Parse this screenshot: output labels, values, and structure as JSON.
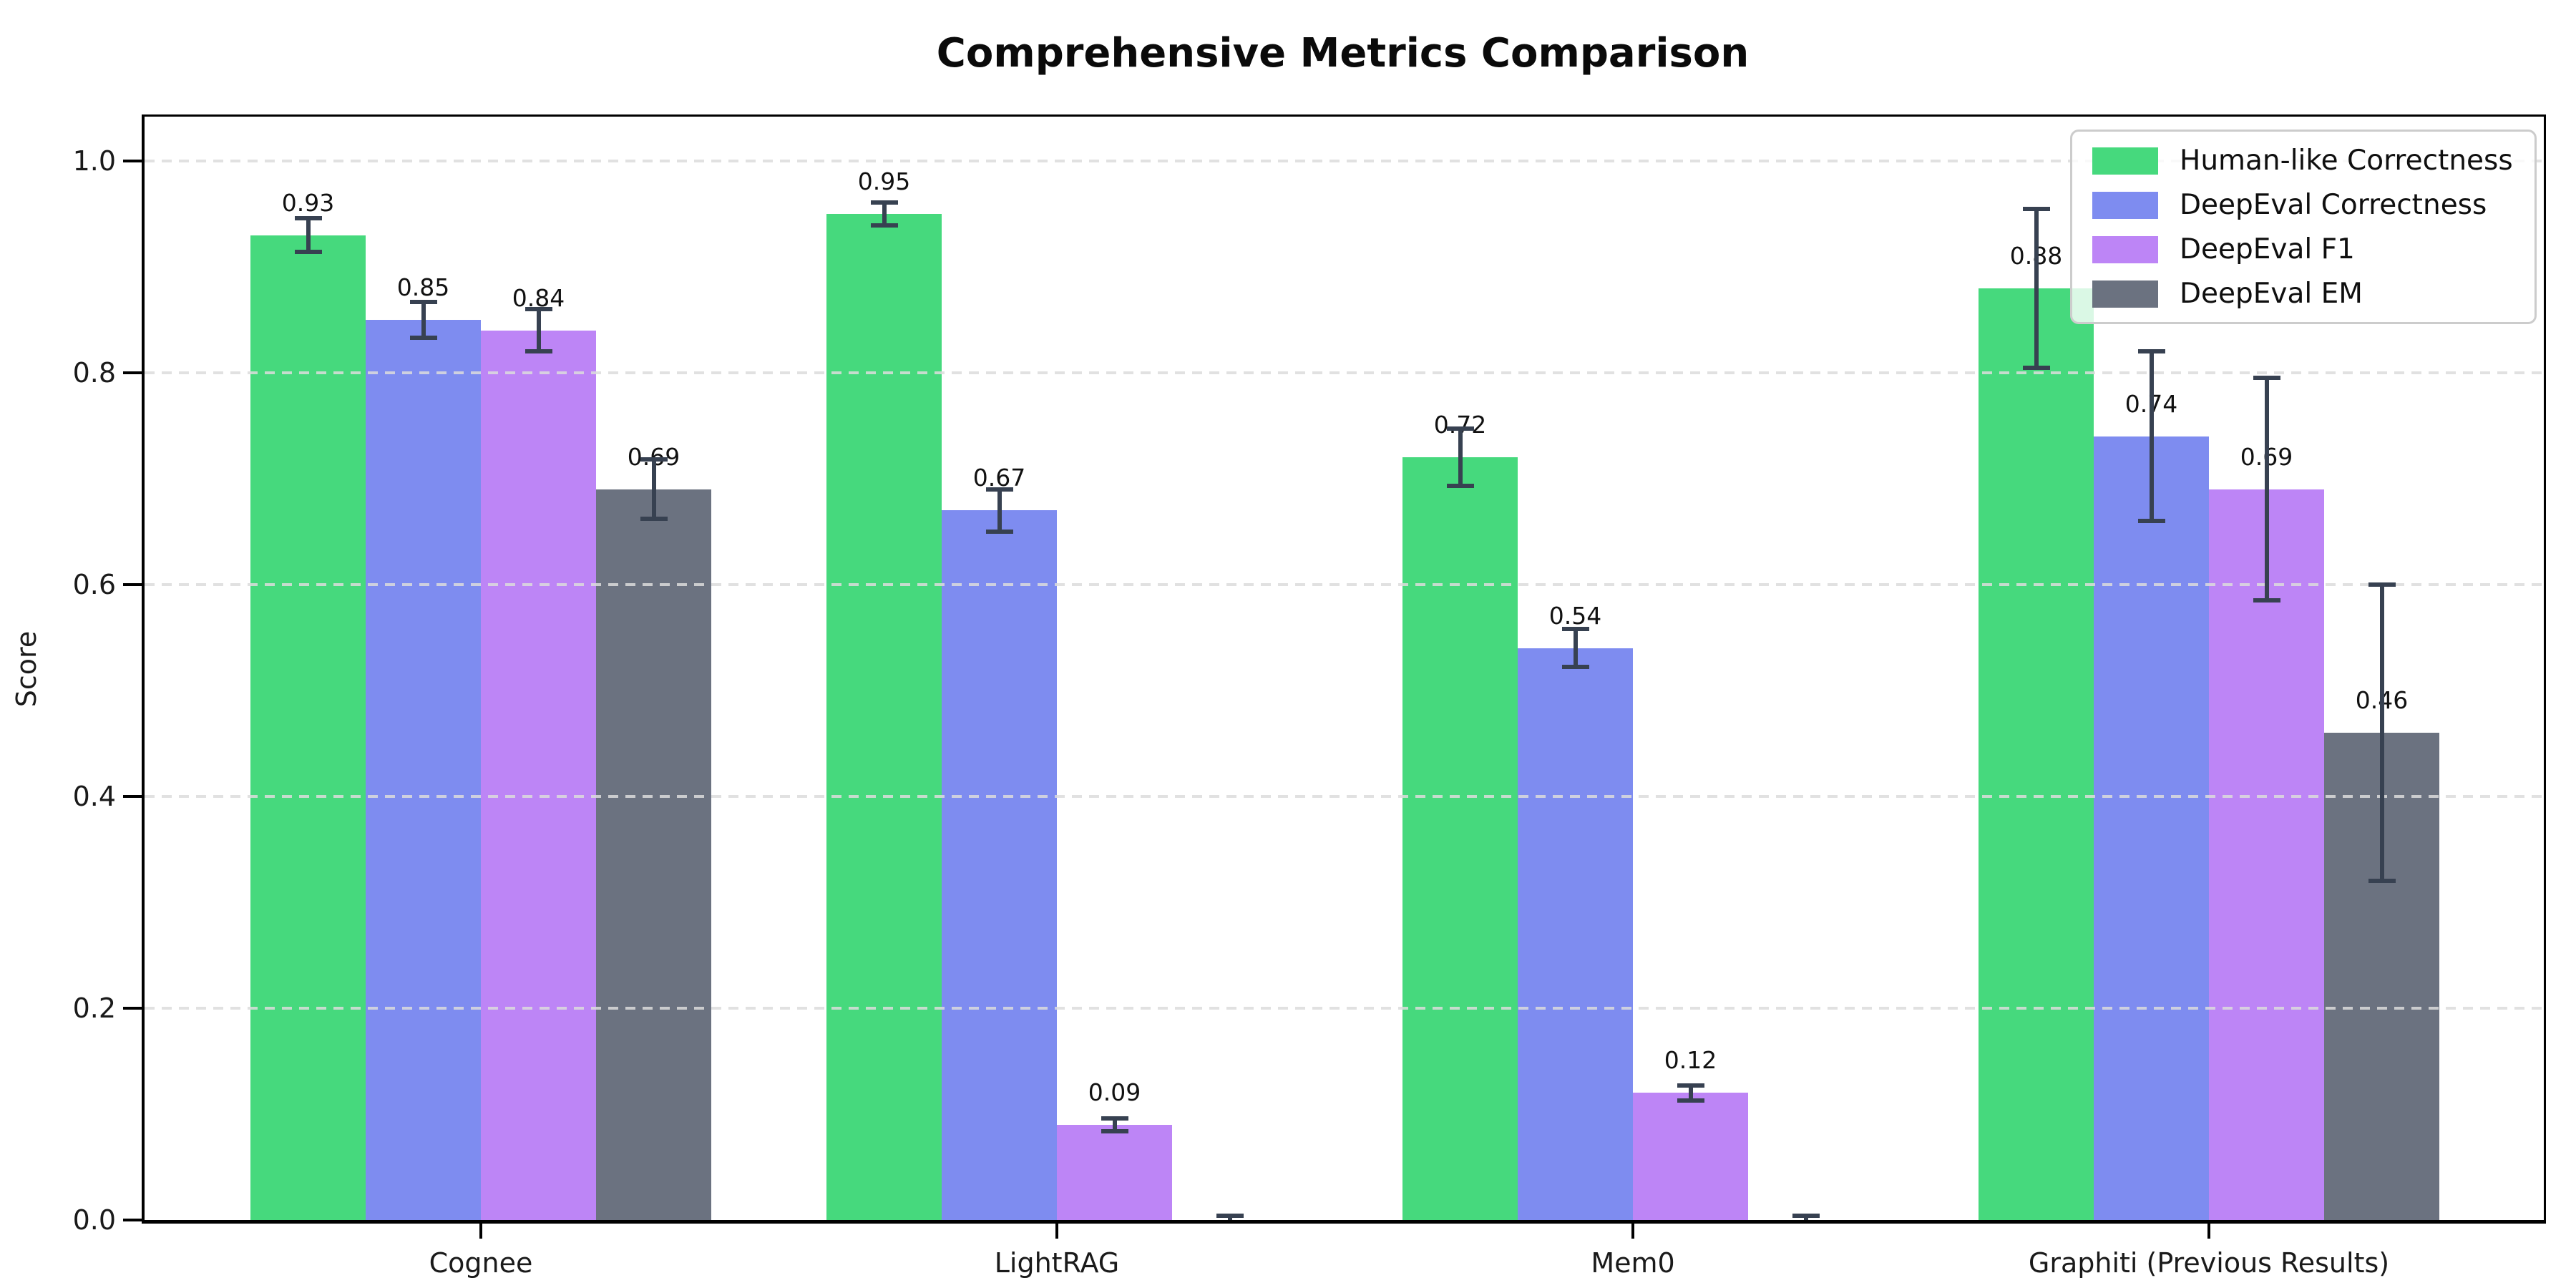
{
  "title": "Comprehensive Metrics Comparison",
  "ylabel": "Score",
  "chart_data": {
    "type": "bar",
    "categories": [
      "Cognee",
      "LightRAG",
      "Mem0",
      "Graphiti (Previous Results)"
    ],
    "series": [
      {
        "name": "Human-like Correctness",
        "color": "#46d97d",
        "values": [
          0.93,
          0.95,
          0.72,
          0.88
        ],
        "errors": [
          0.016,
          0.011,
          0.027,
          0.075
        ],
        "labels": [
          "0.93",
          "0.95",
          "0.72",
          "0.88"
        ]
      },
      {
        "name": "DeepEval Correctness",
        "color": "#7e8cf0",
        "values": [
          0.85,
          0.67,
          0.54,
          0.74
        ],
        "errors": [
          0.017,
          0.02,
          0.018,
          0.08
        ],
        "labels": [
          "0.85",
          "0.67",
          "0.54",
          "0.74"
        ]
      },
      {
        "name": "DeepEval F1",
        "color": "#bd85f6",
        "values": [
          0.84,
          0.09,
          0.12,
          0.69
        ],
        "errors": [
          0.02,
          0.006,
          0.007,
          0.105
        ],
        "labels": [
          "0.84",
          "0.09",
          "0.12",
          "0.69"
        ]
      },
      {
        "name": "DeepEval EM",
        "color": "#6b7280",
        "values": [
          0.69,
          0.0,
          0.0,
          0.46
        ],
        "errors": [
          0.028,
          0.004,
          0.004,
          0.14
        ],
        "labels": [
          "0.69",
          null,
          null,
          "0.46"
        ]
      }
    ],
    "title": "Comprehensive Metrics Comparison",
    "xlabel": "",
    "ylabel": "Score",
    "ylim": [
      0,
      1.05
    ],
    "yticks": [
      "0.0",
      "0.2",
      "0.4",
      "0.6",
      "0.8",
      "1.0"
    ],
    "grid": "dashed horizontal",
    "legend_position": "upper right",
    "error_bar_color": "#374151",
    "grid_color": "#dcdcdc"
  }
}
